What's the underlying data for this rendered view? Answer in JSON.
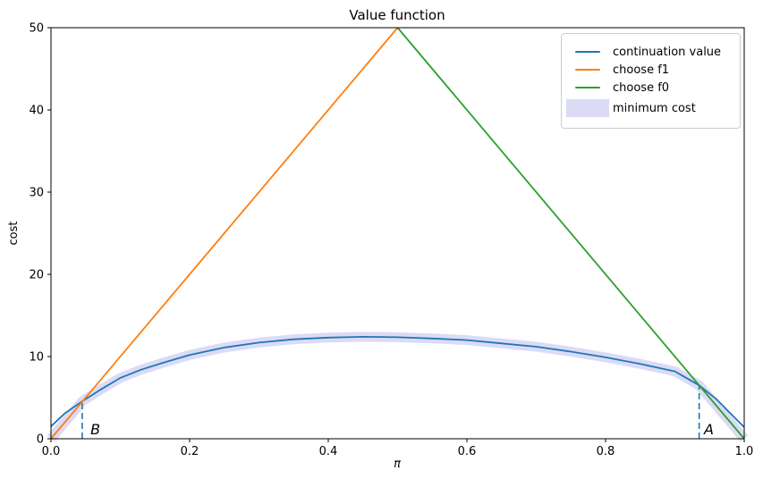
{
  "figure": {
    "background": "#ffffff"
  },
  "chart_data": {
    "type": "line",
    "title": "Value function",
    "xlabel": "π",
    "ylabel": "cost",
    "xlim": [
      0,
      1
    ],
    "ylim": [
      0,
      50
    ],
    "grid": false,
    "legend_position": "upper right",
    "xticks": [
      0,
      0.2,
      0.4,
      0.6,
      0.8,
      1.0
    ],
    "xtick_labels": [
      "0.0",
      "0.2",
      "0.4",
      "0.6",
      "0.8",
      "1.0"
    ],
    "yticks": [
      0,
      10,
      20,
      30,
      40,
      50
    ],
    "ytick_labels": [
      "0",
      "10",
      "20",
      "30",
      "40",
      "50"
    ],
    "series": [
      {
        "name": "continuation value",
        "type": "line",
        "color": "#1f77b4",
        "x": [
          0,
          0.01,
          0.02,
          0.045,
          0.07,
          0.1,
          0.13,
          0.16,
          0.2,
          0.25,
          0.3,
          0.35,
          0.4,
          0.45,
          0.5,
          0.55,
          0.6,
          0.65,
          0.7,
          0.75,
          0.8,
          0.85,
          0.9,
          0.935,
          0.96,
          0.98,
          1.0
        ],
        "y": [
          1.5,
          2.3,
          3.1,
          4.55,
          5.9,
          7.4,
          8.4,
          9.2,
          10.2,
          11.1,
          11.7,
          12.1,
          12.3,
          12.4,
          12.35,
          12.2,
          12.0,
          11.6,
          11.2,
          10.6,
          9.9,
          9.1,
          8.2,
          6.5,
          4.8,
          3.1,
          1.4
        ]
      },
      {
        "name": "choose f1",
        "type": "line",
        "color": "#ff7f0e",
        "x": [
          0,
          0.5
        ],
        "y": [
          0,
          50
        ]
      },
      {
        "name": "choose f0",
        "type": "line",
        "color": "#2ca02c",
        "x": [
          0.5,
          1.0
        ],
        "y": [
          50,
          0
        ]
      },
      {
        "name": "minimum cost",
        "type": "band",
        "color": "#6e6edc",
        "opacity": 0.25,
        "x": [
          0,
          0.02,
          0.045,
          0.07,
          0.1,
          0.13,
          0.16,
          0.2,
          0.25,
          0.3,
          0.35,
          0.4,
          0.45,
          0.5,
          0.55,
          0.6,
          0.65,
          0.7,
          0.75,
          0.8,
          0.85,
          0.9,
          0.935,
          0.96,
          0.98,
          1.0
        ],
        "y": [
          0,
          2.0,
          4.55,
          5.9,
          7.4,
          8.4,
          9.2,
          10.2,
          11.1,
          11.7,
          12.1,
          12.3,
          12.4,
          12.35,
          12.2,
          12.0,
          11.6,
          11.2,
          10.6,
          9.9,
          9.1,
          8.2,
          6.5,
          4.0,
          2.0,
          0
        ]
      }
    ],
    "annotations": [
      {
        "label": "B",
        "line_x": 0.045,
        "line_top": 4.55,
        "label_x": 0.057,
        "label_y": 0.55,
        "color": "#1f77b4"
      },
      {
        "label": "A",
        "line_x": 0.935,
        "line_top": 6.5,
        "label_x": 0.942,
        "label_y": 0.55,
        "color": "#1f77b4"
      }
    ],
    "legend": {
      "entries": [
        "continuation value",
        "choose f1",
        "choose f0",
        "minimum cost"
      ]
    }
  }
}
